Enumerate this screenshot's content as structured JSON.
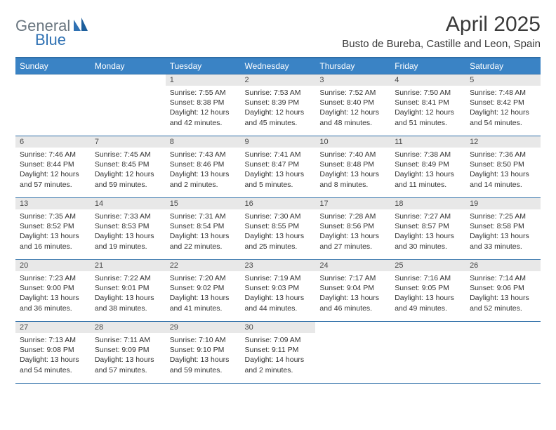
{
  "logo": {
    "part1": "General",
    "part2": "Blue"
  },
  "title": "April 2025",
  "location": "Busto de Bureba, Castille and Leon, Spain",
  "colors": {
    "header_bg": "#3a83c5",
    "header_border": "#2f6fa8",
    "daynum_bg": "#e8e8e8",
    "text": "#333333",
    "logo_gray": "#6a7680",
    "logo_blue": "#2f71b3"
  },
  "day_headers": [
    "Sunday",
    "Monday",
    "Tuesday",
    "Wednesday",
    "Thursday",
    "Friday",
    "Saturday"
  ],
  "weeks": [
    [
      {
        "n": "",
        "lines": []
      },
      {
        "n": "",
        "lines": []
      },
      {
        "n": "1",
        "lines": [
          "Sunrise: 7:55 AM",
          "Sunset: 8:38 PM",
          "Daylight: 12 hours",
          "and 42 minutes."
        ]
      },
      {
        "n": "2",
        "lines": [
          "Sunrise: 7:53 AM",
          "Sunset: 8:39 PM",
          "Daylight: 12 hours",
          "and 45 minutes."
        ]
      },
      {
        "n": "3",
        "lines": [
          "Sunrise: 7:52 AM",
          "Sunset: 8:40 PM",
          "Daylight: 12 hours",
          "and 48 minutes."
        ]
      },
      {
        "n": "4",
        "lines": [
          "Sunrise: 7:50 AM",
          "Sunset: 8:41 PM",
          "Daylight: 12 hours",
          "and 51 minutes."
        ]
      },
      {
        "n": "5",
        "lines": [
          "Sunrise: 7:48 AM",
          "Sunset: 8:42 PM",
          "Daylight: 12 hours",
          "and 54 minutes."
        ]
      }
    ],
    [
      {
        "n": "6",
        "lines": [
          "Sunrise: 7:46 AM",
          "Sunset: 8:44 PM",
          "Daylight: 12 hours",
          "and 57 minutes."
        ]
      },
      {
        "n": "7",
        "lines": [
          "Sunrise: 7:45 AM",
          "Sunset: 8:45 PM",
          "Daylight: 12 hours",
          "and 59 minutes."
        ]
      },
      {
        "n": "8",
        "lines": [
          "Sunrise: 7:43 AM",
          "Sunset: 8:46 PM",
          "Daylight: 13 hours",
          "and 2 minutes."
        ]
      },
      {
        "n": "9",
        "lines": [
          "Sunrise: 7:41 AM",
          "Sunset: 8:47 PM",
          "Daylight: 13 hours",
          "and 5 minutes."
        ]
      },
      {
        "n": "10",
        "lines": [
          "Sunrise: 7:40 AM",
          "Sunset: 8:48 PM",
          "Daylight: 13 hours",
          "and 8 minutes."
        ]
      },
      {
        "n": "11",
        "lines": [
          "Sunrise: 7:38 AM",
          "Sunset: 8:49 PM",
          "Daylight: 13 hours",
          "and 11 minutes."
        ]
      },
      {
        "n": "12",
        "lines": [
          "Sunrise: 7:36 AM",
          "Sunset: 8:50 PM",
          "Daylight: 13 hours",
          "and 14 minutes."
        ]
      }
    ],
    [
      {
        "n": "13",
        "lines": [
          "Sunrise: 7:35 AM",
          "Sunset: 8:52 PM",
          "Daylight: 13 hours",
          "and 16 minutes."
        ]
      },
      {
        "n": "14",
        "lines": [
          "Sunrise: 7:33 AM",
          "Sunset: 8:53 PM",
          "Daylight: 13 hours",
          "and 19 minutes."
        ]
      },
      {
        "n": "15",
        "lines": [
          "Sunrise: 7:31 AM",
          "Sunset: 8:54 PM",
          "Daylight: 13 hours",
          "and 22 minutes."
        ]
      },
      {
        "n": "16",
        "lines": [
          "Sunrise: 7:30 AM",
          "Sunset: 8:55 PM",
          "Daylight: 13 hours",
          "and 25 minutes."
        ]
      },
      {
        "n": "17",
        "lines": [
          "Sunrise: 7:28 AM",
          "Sunset: 8:56 PM",
          "Daylight: 13 hours",
          "and 27 minutes."
        ]
      },
      {
        "n": "18",
        "lines": [
          "Sunrise: 7:27 AM",
          "Sunset: 8:57 PM",
          "Daylight: 13 hours",
          "and 30 minutes."
        ]
      },
      {
        "n": "19",
        "lines": [
          "Sunrise: 7:25 AM",
          "Sunset: 8:58 PM",
          "Daylight: 13 hours",
          "and 33 minutes."
        ]
      }
    ],
    [
      {
        "n": "20",
        "lines": [
          "Sunrise: 7:23 AM",
          "Sunset: 9:00 PM",
          "Daylight: 13 hours",
          "and 36 minutes."
        ]
      },
      {
        "n": "21",
        "lines": [
          "Sunrise: 7:22 AM",
          "Sunset: 9:01 PM",
          "Daylight: 13 hours",
          "and 38 minutes."
        ]
      },
      {
        "n": "22",
        "lines": [
          "Sunrise: 7:20 AM",
          "Sunset: 9:02 PM",
          "Daylight: 13 hours",
          "and 41 minutes."
        ]
      },
      {
        "n": "23",
        "lines": [
          "Sunrise: 7:19 AM",
          "Sunset: 9:03 PM",
          "Daylight: 13 hours",
          "and 44 minutes."
        ]
      },
      {
        "n": "24",
        "lines": [
          "Sunrise: 7:17 AM",
          "Sunset: 9:04 PM",
          "Daylight: 13 hours",
          "and 46 minutes."
        ]
      },
      {
        "n": "25",
        "lines": [
          "Sunrise: 7:16 AM",
          "Sunset: 9:05 PM",
          "Daylight: 13 hours",
          "and 49 minutes."
        ]
      },
      {
        "n": "26",
        "lines": [
          "Sunrise: 7:14 AM",
          "Sunset: 9:06 PM",
          "Daylight: 13 hours",
          "and 52 minutes."
        ]
      }
    ],
    [
      {
        "n": "27",
        "lines": [
          "Sunrise: 7:13 AM",
          "Sunset: 9:08 PM",
          "Daylight: 13 hours",
          "and 54 minutes."
        ]
      },
      {
        "n": "28",
        "lines": [
          "Sunrise: 7:11 AM",
          "Sunset: 9:09 PM",
          "Daylight: 13 hours",
          "and 57 minutes."
        ]
      },
      {
        "n": "29",
        "lines": [
          "Sunrise: 7:10 AM",
          "Sunset: 9:10 PM",
          "Daylight: 13 hours",
          "and 59 minutes."
        ]
      },
      {
        "n": "30",
        "lines": [
          "Sunrise: 7:09 AM",
          "Sunset: 9:11 PM",
          "Daylight: 14 hours",
          "and 2 minutes."
        ]
      },
      {
        "n": "",
        "lines": []
      },
      {
        "n": "",
        "lines": []
      },
      {
        "n": "",
        "lines": []
      }
    ]
  ]
}
